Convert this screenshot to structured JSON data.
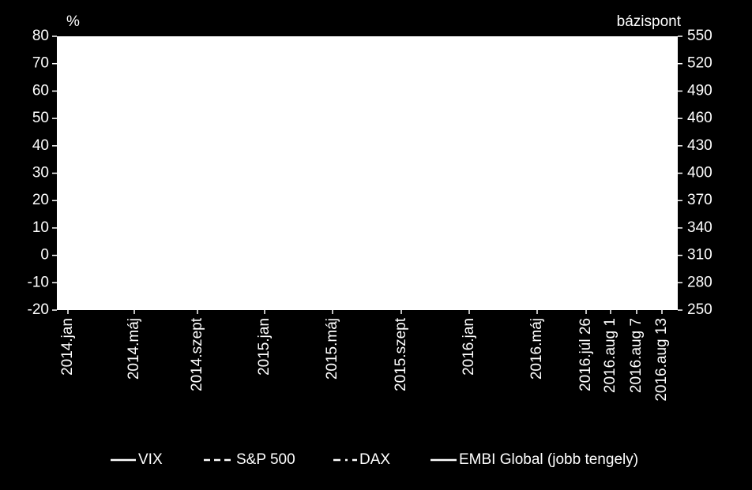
{
  "chart_data": {
    "type": "line",
    "y_label": "%",
    "y2_label": "bázispont",
    "categories": [
      "2014.jan",
      "2014.máj",
      "2014.szept",
      "2015.jan",
      "2015.máj",
      "2015.szept",
      "2016.jan",
      "2016.máj",
      "2016.júl 26",
      "2016.aug 1",
      "2016.aug 7",
      "2016.aug 13"
    ],
    "ylim": [
      -20,
      80
    ],
    "yticks": [
      -20,
      -10,
      0,
      10,
      20,
      30,
      40,
      50,
      60,
      70,
      80
    ],
    "y2lim": [
      250,
      550
    ],
    "y2ticks": [
      250,
      280,
      310,
      340,
      370,
      400,
      430,
      460,
      490,
      520,
      550
    ],
    "series": [
      {
        "name": "VIX",
        "color": "#ffffff",
        "dash": "solid"
      },
      {
        "name": "S&P 500",
        "color": "#ffffff",
        "dash": "dashed"
      },
      {
        "name": "DAX",
        "color": "#ffffff",
        "dash": "dashdot"
      },
      {
        "name": "EMBI Global (jobb tengely)",
        "color": "#ffffff",
        "dash": "solid",
        "axis": "y2"
      }
    ]
  }
}
